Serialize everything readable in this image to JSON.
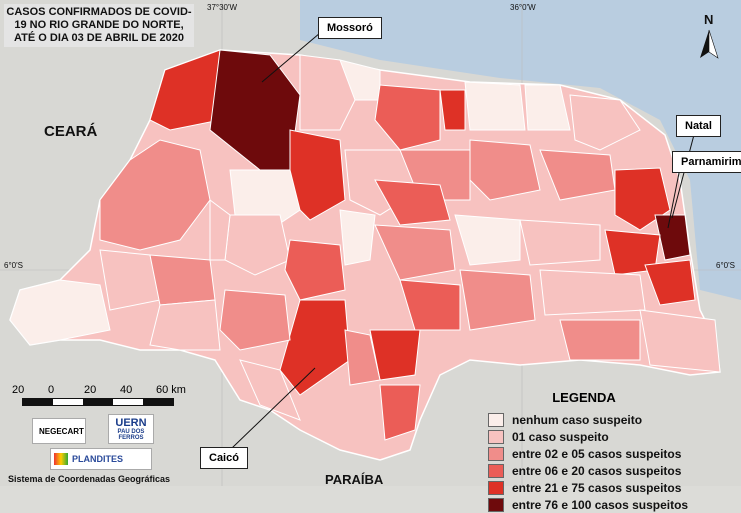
{
  "title": "CASOS CONFIRMADOS DE COVID-19 NO RIO GRANDE DO NORTE, ATÉ O DIA 03 DE ABRIL DE 2020",
  "coords": {
    "lon1": "37°30'W",
    "lon2": "36°0'W",
    "lat_left": "6°0'S",
    "lat_right": "6°0'S"
  },
  "north_label": "N",
  "neighbors": {
    "ceara": "CEARÁ",
    "paraiba": "PARAÍBA"
  },
  "callouts": {
    "mossoro": "Mossoró",
    "natal": "Natal",
    "parnamirim": "Parnamirim",
    "caico": "Caicó"
  },
  "legend": {
    "title": "LEGENDA",
    "items": [
      {
        "label": "nenhum caso suspeito",
        "color": "#fbeeea"
      },
      {
        "label": "01 caso suspeito",
        "color": "#f7c2c0"
      },
      {
        "label": "entre 02 e 05 casos suspeitos",
        "color": "#f08d8a"
      },
      {
        "label": "entre 06 e 20 casos suspeitos",
        "color": "#eb5d57"
      },
      {
        "label": "entre 21 e 75 casos suspeitos",
        "color": "#de3126"
      },
      {
        "label": "entre 76 e 100 casos suspeitos",
        "color": "#6e0a0c"
      }
    ]
  },
  "scale": {
    "labels": [
      "20",
      "0",
      "20",
      "40",
      "60 km"
    ]
  },
  "logos": {
    "negecart": "NEGECART",
    "uern": "UERN",
    "uern_sub": "PAU DOS FERROS",
    "plandites": "PLANDITES"
  },
  "footer": "Sistema de Coordenadas Geográficas"
}
